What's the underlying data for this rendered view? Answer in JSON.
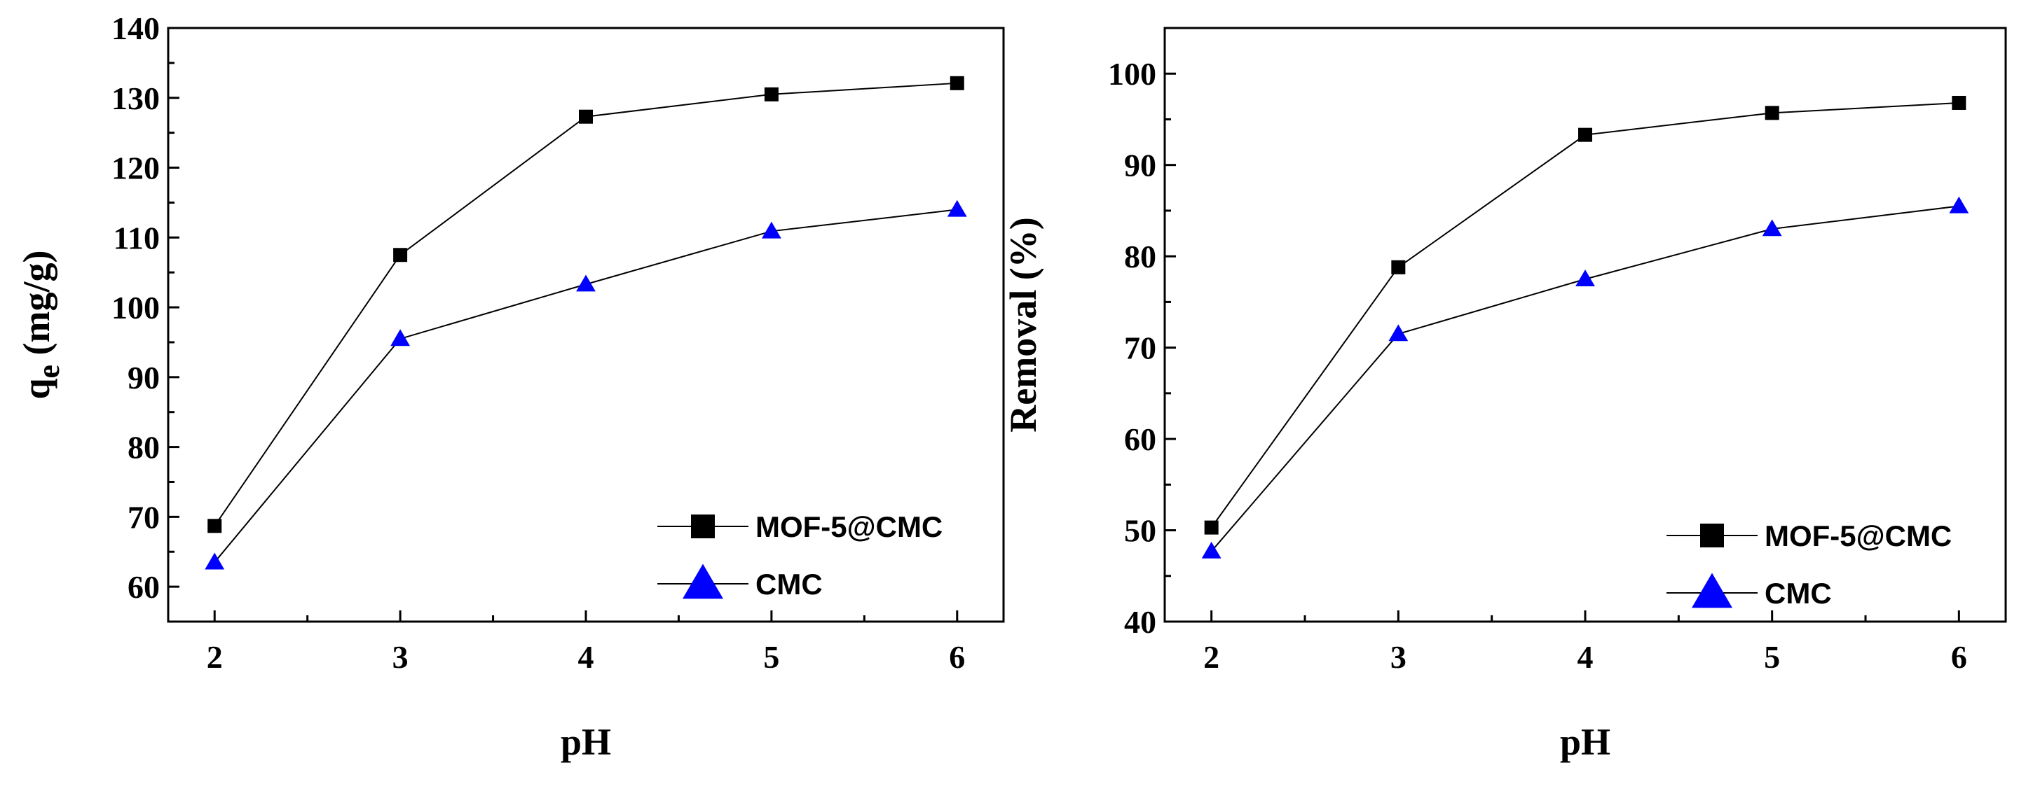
{
  "chart_data": [
    {
      "type": "line",
      "title": "",
      "xlabel": "pH",
      "ylabel": "qe (mg/g)",
      "ylabel_main": "q",
      "ylabel_sub": "e",
      "ylabel_rest": " (mg/g)",
      "xlim": [
        1.75,
        6.25
      ],
      "ylim": [
        55,
        140
      ],
      "xticks": [
        2,
        3,
        4,
        5,
        6
      ],
      "yticks": [
        60,
        70,
        80,
        90,
        100,
        110,
        120,
        130,
        140
      ],
      "x": [
        2,
        3,
        4,
        5,
        6
      ],
      "legend_position": "bottom-right",
      "series": [
        {
          "name": "MOF-5@CMC",
          "marker": "square",
          "color": "#000000",
          "values": [
            68.7,
            107.5,
            127.3,
            130.5,
            132.1
          ]
        },
        {
          "name": "CMC",
          "marker": "triangle",
          "color": "#0000ff",
          "values": [
            63.5,
            95.5,
            103.3,
            110.9,
            114.0
          ]
        }
      ]
    },
    {
      "type": "line",
      "title": "",
      "xlabel": "pH",
      "ylabel": "Removal (%)",
      "xlim": [
        1.75,
        6.25
      ],
      "ylim": [
        40,
        105
      ],
      "xticks": [
        2,
        3,
        4,
        5,
        6
      ],
      "yticks": [
        40,
        50,
        60,
        70,
        80,
        90,
        100
      ],
      "x": [
        2,
        3,
        4,
        5,
        6
      ],
      "legend_position": "bottom-right",
      "series": [
        {
          "name": "MOF-5@CMC",
          "marker": "square",
          "color": "#000000",
          "values": [
            50.3,
            78.8,
            93.3,
            95.7,
            96.8
          ]
        },
        {
          "name": "CMC",
          "marker": "triangle",
          "color": "#0000ff",
          "values": [
            47.7,
            71.5,
            77.5,
            83.0,
            85.5
          ]
        }
      ]
    }
  ]
}
